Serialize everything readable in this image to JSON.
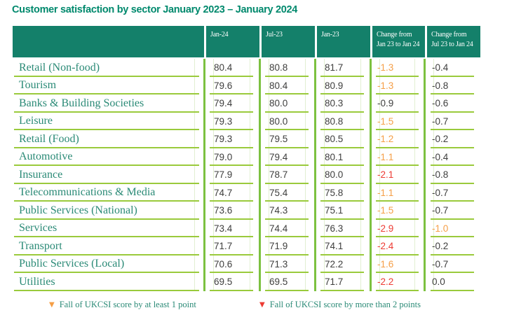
{
  "title": "Customer satisfaction by sector January 2023 – January 2024",
  "colors": {
    "header_bg": "#14806A",
    "title": "#00896D",
    "sector_text": "#2A8A76",
    "number_text": "#3E3E3D",
    "orange": "#F59E46",
    "red": "#ED3B33",
    "rule_green": "#7CC140",
    "underline_green": "#9ACA3C",
    "faint_green": "#E2EFD2"
  },
  "table": {
    "columns": [
      {
        "key": "sector",
        "line1": "",
        "line2": ""
      },
      {
        "key": "jan24",
        "line1": "Jan-24",
        "line2": ""
      },
      {
        "key": "jul23",
        "line1": "Jul-23",
        "line2": ""
      },
      {
        "key": "jan23",
        "line1": "Jan-23",
        "line2": ""
      },
      {
        "key": "change_jan",
        "line1": "Change from",
        "line2": "Jan 23 to Jan 24"
      },
      {
        "key": "change_jul",
        "line1": "Change from",
        "line2": "Jul 23 to Jan 24"
      }
    ],
    "rows": [
      {
        "sector": "Retail (Non-food)",
        "jan24": "80.4",
        "jul23": "80.8",
        "jan23": "81.7",
        "change_jan": "-1.3",
        "change_jul": "-0.4"
      },
      {
        "sector": "Tourism",
        "jan24": "79.6",
        "jul23": "80.4",
        "jan23": "80.9",
        "change_jan": "-1.3",
        "change_jul": "-0.8"
      },
      {
        "sector": "Banks & Building Societies",
        "jan24": "79.4",
        "jul23": "80.0",
        "jan23": "80.3",
        "change_jan": "-0.9",
        "change_jul": "-0.6"
      },
      {
        "sector": "Leisure",
        "jan24": "79.3",
        "jul23": "80.0",
        "jan23": "80.8",
        "change_jan": "-1.5",
        "change_jul": "-0.7"
      },
      {
        "sector": "Retail (Food)",
        "jan24": "79.3",
        "jul23": "79.5",
        "jan23": "80.5",
        "change_jan": "-1.2",
        "change_jul": "-0.2"
      },
      {
        "sector": "Automotive",
        "jan24": "79.0",
        "jul23": "79.4",
        "jan23": "80.1",
        "change_jan": "-1.1",
        "change_jul": "-0.4"
      },
      {
        "sector": "Insurance",
        "jan24": "77.9",
        "jul23": "78.7",
        "jan23": "80.0",
        "change_jan": "-2.1",
        "change_jul": "-0.8"
      },
      {
        "sector": "Telecommunications & Media",
        "jan24": "74.7",
        "jul23": "75.4",
        "jan23": "75.8",
        "change_jan": "-1.1",
        "change_jul": "-0.7"
      },
      {
        "sector": "Public Services (National)",
        "jan24": "73.6",
        "jul23": "74.3",
        "jan23": "75.1",
        "change_jan": "-1.5",
        "change_jul": "-0.7"
      },
      {
        "sector": "Services",
        "jan24": "73.4",
        "jul23": "74.4",
        "jan23": "76.3",
        "change_jan": "-2.9",
        "change_jul": "-1.0"
      },
      {
        "sector": "Transport",
        "jan24": "71.7",
        "jul23": "71.9",
        "jan23": "74.1",
        "change_jan": "-2.4",
        "change_jul": "-0.2"
      },
      {
        "sector": "Public Services (Local)",
        "jan24": "70.6",
        "jul23": "71.3",
        "jan23": "72.2",
        "change_jan": "-1.6",
        "change_jul": "-0.7"
      },
      {
        "sector": "Utilities",
        "jan24": "69.5",
        "jul23": "69.5",
        "jan23": "71.7",
        "change_jan": "-2.2",
        "change_jul": "0.0"
      }
    ]
  },
  "legend": [
    {
      "marker": "▼",
      "severity": "orange",
      "text": "Fall of UKCSI score by at least 1 point"
    },
    {
      "marker": "▼",
      "severity": "red",
      "text": "Fall of UKCSI score by more than 2 points"
    }
  ]
}
